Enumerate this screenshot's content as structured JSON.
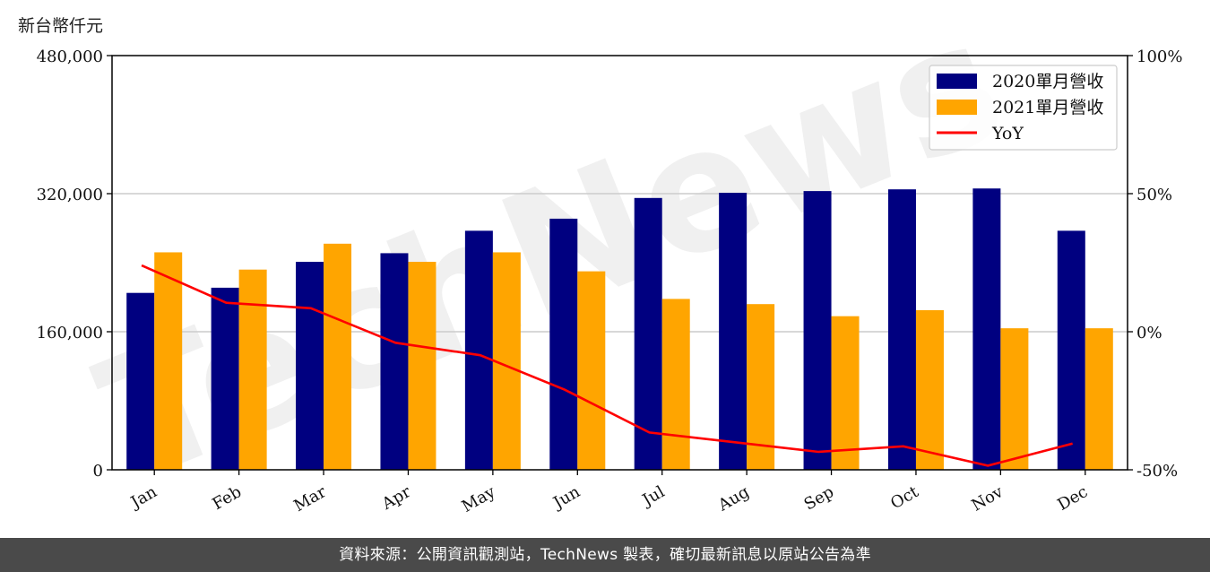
{
  "chart_data": {
    "type": "bar",
    "y_unit_label": "新台幣仟元",
    "categories": [
      "Jan",
      "Feb",
      "Mar",
      "Apr",
      "May",
      "Jun",
      "Jul",
      "Aug",
      "Sep",
      "Oct",
      "Nov",
      "Dec"
    ],
    "series": [
      {
        "name": "2020單月營收",
        "type": "bar",
        "axis": "left",
        "color": "#000080",
        "values": [
          205000,
          211000,
          241000,
          251000,
          277000,
          291000,
          315000,
          321000,
          323000,
          325000,
          326000,
          277000
        ]
      },
      {
        "name": "2021單月營收",
        "type": "bar",
        "axis": "left",
        "color": "#FFA500",
        "values": [
          252000,
          232000,
          262000,
          241000,
          252000,
          230000,
          198000,
          192000,
          178000,
          185000,
          164000,
          164000
        ]
      },
      {
        "name": "YoY",
        "type": "line",
        "axis": "right",
        "color": "#FF0000",
        "values": [
          24,
          10.5,
          8.5,
          -4,
          -8.5,
          -21,
          -36.5,
          -40,
          -43.5,
          -41.5,
          -48.5,
          -40.5
        ]
      }
    ],
    "ylim_left": [
      0,
      480000
    ],
    "yticks_left": [
      0,
      160000,
      320000,
      480000
    ],
    "ytick_labels_left": [
      "0",
      "160,000",
      "320,000",
      "480,000"
    ],
    "ylim_right": [
      -50,
      100
    ],
    "yticks_right": [
      -50,
      0,
      50,
      100
    ],
    "ytick_labels_right": [
      "-50%",
      "0%",
      "50%",
      "100%"
    ],
    "grid": "horizontal",
    "legend_position": "top-right"
  },
  "watermark": "TechNews",
  "footer": "資料來源：公開資訊觀測站，TechNews 製表，確切最新訊息以原站公告為準"
}
